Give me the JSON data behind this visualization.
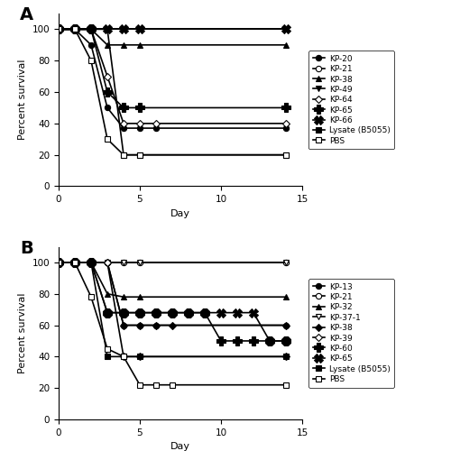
{
  "panel_A": {
    "series": [
      {
        "label": "KP-20",
        "marker": "o",
        "fillstyle": "full",
        "x": [
          0,
          1,
          2,
          3,
          4,
          5,
          6,
          14
        ],
        "y": [
          100,
          100,
          90,
          50,
          37,
          37,
          37,
          37
        ]
      },
      {
        "label": "KP-21",
        "marker": "o",
        "fillstyle": "none",
        "x": [
          0,
          1,
          2,
          3,
          4,
          5,
          14
        ],
        "y": [
          100,
          100,
          100,
          100,
          100,
          100,
          100
        ]
      },
      {
        "label": "KP-38",
        "marker": "^",
        "fillstyle": "full",
        "x": [
          0,
          1,
          2,
          3,
          4,
          5,
          14
        ],
        "y": [
          100,
          100,
          100,
          90,
          90,
          90,
          90
        ]
      },
      {
        "label": "KP-49",
        "marker": "v",
        "fillstyle": "full",
        "x": [
          0,
          1,
          2,
          3,
          4,
          5,
          14
        ],
        "y": [
          100,
          100,
          100,
          100,
          100,
          100,
          100
        ]
      },
      {
        "label": "KP-64",
        "marker": "D",
        "fillstyle": "none",
        "x": [
          0,
          1,
          2,
          3,
          4,
          5,
          6,
          14
        ],
        "y": [
          100,
          100,
          100,
          70,
          40,
          40,
          40,
          40
        ]
      },
      {
        "label": "KP-65",
        "marker": "P",
        "fillstyle": "full",
        "x": [
          0,
          1,
          2,
          3,
          4,
          5,
          14
        ],
        "y": [
          100,
          100,
          100,
          60,
          50,
          50,
          50
        ]
      },
      {
        "label": "KP-66",
        "marker": "X",
        "fillstyle": "full",
        "x": [
          0,
          1,
          2,
          3,
          4,
          5,
          14
        ],
        "y": [
          100,
          100,
          100,
          100,
          100,
          100,
          100
        ]
      },
      {
        "label": "Lysate (B5055)",
        "marker": "s",
        "fillstyle": "full",
        "x": [
          0,
          1,
          2,
          3,
          4,
          5,
          14
        ],
        "y": [
          100,
          100,
          100,
          100,
          20,
          20,
          20
        ]
      },
      {
        "label": "PBS",
        "marker": "s",
        "fillstyle": "none",
        "x": [
          0,
          1,
          2,
          3,
          4,
          5,
          14
        ],
        "y": [
          100,
          100,
          80,
          30,
          20,
          20,
          20
        ]
      }
    ]
  },
  "panel_B": {
    "series": [
      {
        "label": "KP-13",
        "marker": "o",
        "fillstyle": "full",
        "x": [
          0,
          1,
          2,
          3,
          4,
          5,
          6,
          14
        ],
        "y": [
          100,
          100,
          100,
          100,
          60,
          60,
          60,
          60
        ]
      },
      {
        "label": "KP-21",
        "marker": "o",
        "fillstyle": "none",
        "x": [
          0,
          1,
          2,
          3,
          4,
          5,
          14
        ],
        "y": [
          100,
          100,
          100,
          100,
          100,
          100,
          100
        ]
      },
      {
        "label": "KP-32",
        "marker": "^",
        "fillstyle": "full",
        "x": [
          0,
          1,
          2,
          3,
          4,
          5,
          14
        ],
        "y": [
          100,
          100,
          100,
          80,
          78,
          78,
          78
        ]
      },
      {
        "label": "KP-37-1",
        "marker": "v",
        "fillstyle": "none",
        "x": [
          0,
          1,
          2,
          3,
          4,
          5,
          14
        ],
        "y": [
          100,
          100,
          100,
          100,
          100,
          100,
          100
        ]
      },
      {
        "label": "KP-38",
        "marker": "D",
        "fillstyle": "full",
        "x": [
          0,
          1,
          2,
          3,
          4,
          5,
          6,
          7,
          14
        ],
        "y": [
          100,
          100,
          100,
          100,
          60,
          60,
          60,
          60,
          60
        ]
      },
      {
        "label": "KP-39",
        "marker": "D",
        "fillstyle": "none",
        "x": [
          0,
          1,
          2,
          3,
          4,
          5,
          14
        ],
        "y": [
          100,
          100,
          100,
          100,
          40,
          40,
          40
        ]
      },
      {
        "label": "KP-60",
        "marker": "P",
        "fillstyle": "full",
        "x": [
          0,
          1,
          2,
          3,
          4,
          5,
          6,
          7,
          8,
          9,
          10,
          11,
          12,
          13,
          14
        ],
        "y": [
          100,
          100,
          100,
          68,
          68,
          68,
          68,
          68,
          68,
          68,
          50,
          50,
          50,
          50,
          50
        ]
      },
      {
        "label": "KP-65",
        "marker": "X",
        "fillstyle": "full",
        "x": [
          0,
          1,
          2,
          3,
          4,
          5,
          6,
          7,
          8,
          9,
          10,
          11,
          12,
          13,
          14
        ],
        "y": [
          100,
          100,
          100,
          68,
          68,
          68,
          68,
          68,
          68,
          68,
          68,
          68,
          68,
          50,
          50
        ]
      },
      {
        "label": "Lysate (B5055)",
        "marker": "s",
        "fillstyle": "full",
        "x": [
          0,
          1,
          2,
          3,
          4,
          5,
          14
        ],
        "y": [
          100,
          100,
          100,
          40,
          40,
          40,
          40
        ]
      },
      {
        "label": "PBS",
        "marker": "s",
        "fillstyle": "none",
        "x": [
          0,
          1,
          2,
          3,
          4,
          5,
          6,
          7,
          14
        ],
        "y": [
          100,
          100,
          78,
          45,
          40,
          22,
          22,
          22,
          22
        ]
      }
    ]
  },
  "xlim": [
    0,
    15
  ],
  "ylim": [
    0,
    110
  ],
  "yticks": [
    0,
    20,
    40,
    60,
    80,
    100
  ],
  "xticks": [
    0,
    5,
    10,
    15
  ],
  "xlabel": "Day",
  "ylabel": "Percent survival",
  "bg_color": "#ffffff",
  "linewidth": 1.2,
  "markersize": 4.5,
  "markersize_star": 7,
  "legend_fontsize": 6.5,
  "axis_fontsize": 8,
  "tick_fontsize": 7.5
}
